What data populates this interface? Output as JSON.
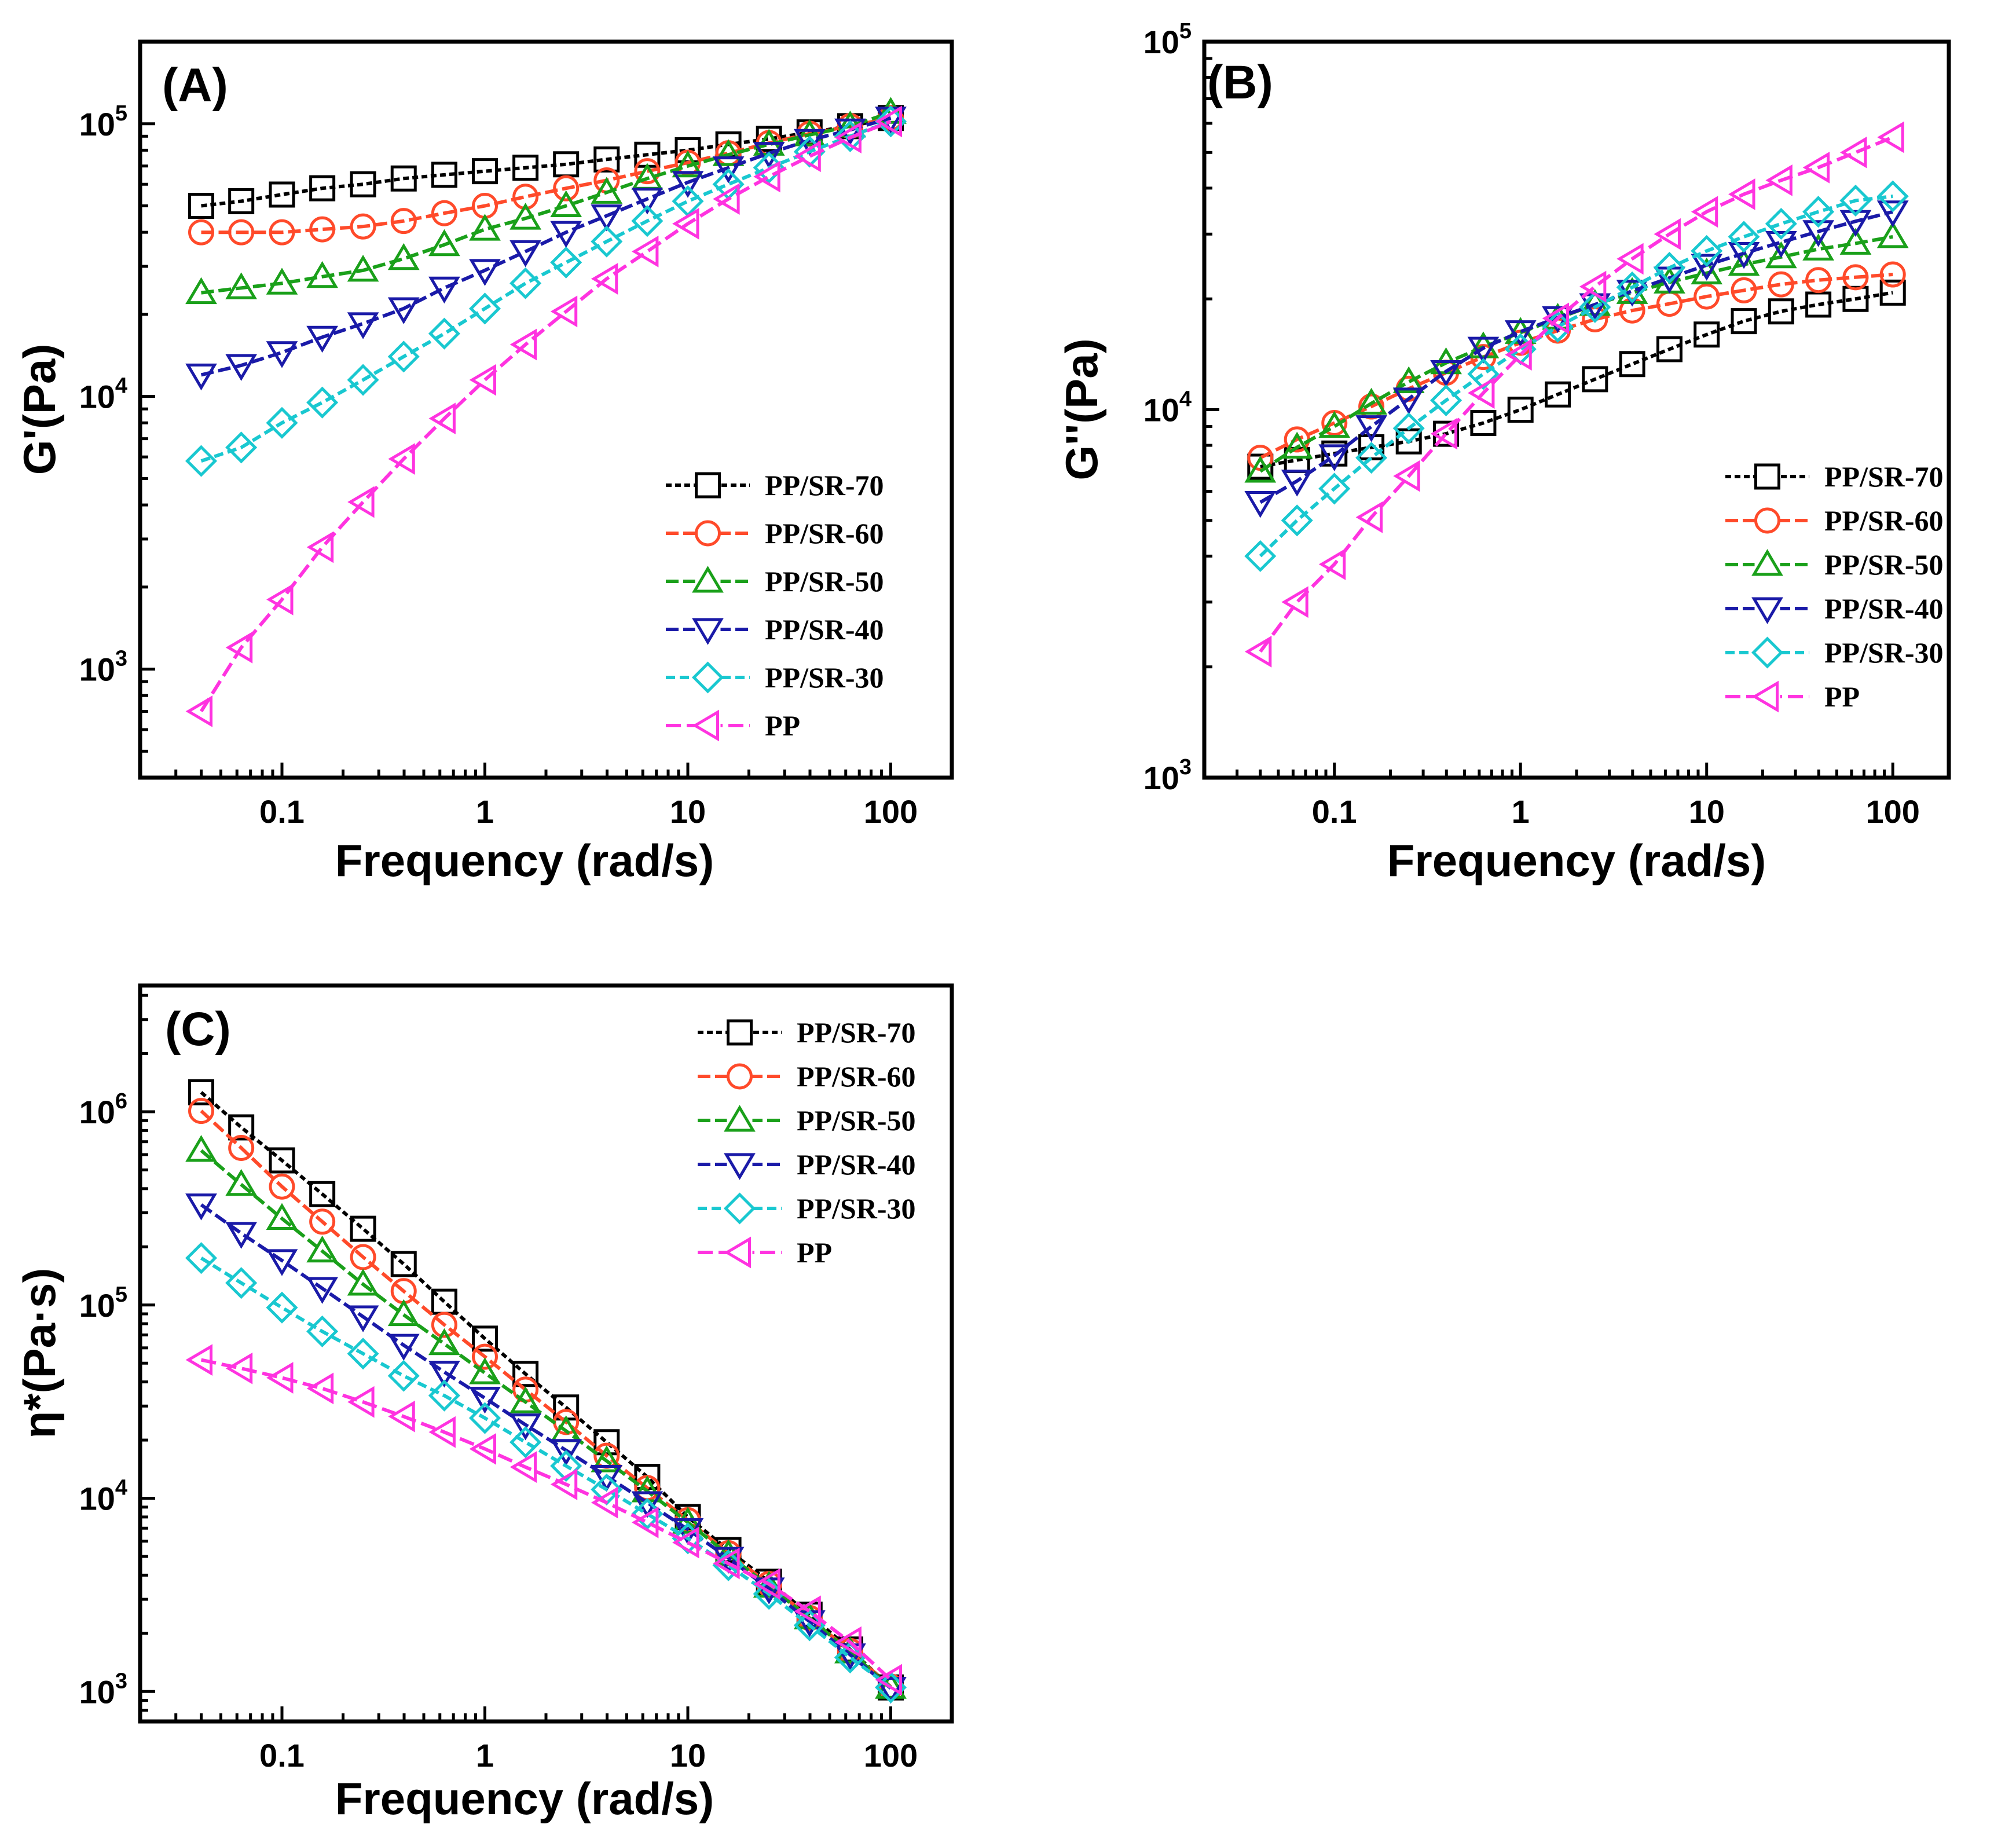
{
  "colors": {
    "PP/SR-70": "#000000",
    "PP/SR-60": "#ff4a2a",
    "PP/SR-50": "#1aa01a",
    "PP/SR-40": "#1a1aa8",
    "PP/SR-30": "#19c8d0",
    "PP": "#ff33e0"
  },
  "chart_data": [
    {
      "panel": "(A)",
      "type": "line",
      "xlabel": "Frequency (rad/s)",
      "ylabel": "G'(Pa)",
      "xscale": "log",
      "yscale": "log",
      "xlim": [
        0.02,
        200
      ],
      "ylim": [
        400,
        200000
      ],
      "xticks": [
        {
          "v": 0.1,
          "label": "0.1"
        },
        {
          "v": 1,
          "label": "1"
        },
        {
          "v": 10,
          "label": "10"
        },
        {
          "v": 100,
          "label": "100"
        }
      ],
      "yticks": [
        {
          "v": 1000,
          "base": "10",
          "exp": "3"
        },
        {
          "v": 10000,
          "base": "10",
          "exp": "4"
        },
        {
          "v": 100000,
          "base": "10",
          "exp": "5"
        }
      ],
      "legend": "bottom-right",
      "x": [
        0.04,
        0.063,
        0.1,
        0.158,
        0.251,
        0.398,
        0.631,
        1,
        1.585,
        2.512,
        3.981,
        6.31,
        10,
        15.85,
        25.12,
        39.81,
        63.1,
        100
      ],
      "series": [
        {
          "name": "PP/SR-70",
          "marker": "square",
          "values": [
            50000,
            52000,
            55000,
            58000,
            60000,
            63000,
            65000,
            67000,
            69000,
            71000,
            74000,
            77000,
            80000,
            84000,
            88000,
            93000,
            98000,
            105000
          ]
        },
        {
          "name": "PP/SR-60",
          "marker": "circle",
          "values": [
            40000,
            40000,
            40000,
            41000,
            42000,
            44000,
            47000,
            50000,
            54000,
            58000,
            62000,
            67000,
            72000,
            78000,
            85000,
            92000,
            98000,
            105000
          ]
        },
        {
          "name": "PP/SR-50",
          "marker": "triangle-up",
          "values": [
            24000,
            25000,
            26000,
            27500,
            29000,
            32000,
            36000,
            41000,
            45000,
            50000,
            56000,
            63000,
            70000,
            77000,
            84000,
            91000,
            98000,
            110000
          ]
        },
        {
          "name": "PP/SR-40",
          "marker": "triangle-down",
          "values": [
            12000,
            13000,
            14500,
            16500,
            18500,
            21000,
            25000,
            29000,
            34000,
            40000,
            46000,
            53000,
            61000,
            69000,
            78000,
            87000,
            95000,
            105000
          ]
        },
        {
          "name": "PP/SR-30",
          "marker": "diamond",
          "values": [
            5800,
            6500,
            8000,
            9500,
            11500,
            14000,
            17000,
            21000,
            26000,
            31000,
            37000,
            44000,
            52000,
            60000,
            69000,
            79000,
            90000,
            102000
          ]
        },
        {
          "name": "PP",
          "marker": "triangle-left",
          "values": [
            700,
            1200,
            1800,
            2800,
            4100,
            5900,
            8300,
            11500,
            15500,
            20500,
            27000,
            34000,
            43000,
            53000,
            64000,
            76000,
            89000,
            102000
          ]
        }
      ]
    },
    {
      "panel": "(B)",
      "type": "line",
      "xlabel": "Frequency (rad/s)",
      "ylabel": "G''(Pa)",
      "xscale": "log",
      "yscale": "log",
      "xlim": [
        0.02,
        200
      ],
      "ylim": [
        1000,
        100000
      ],
      "xticks": [
        {
          "v": 0.1,
          "label": "0.1"
        },
        {
          "v": 1,
          "label": "1"
        },
        {
          "v": 10,
          "label": "10"
        },
        {
          "v": 100,
          "label": "100"
        }
      ],
      "yticks": [
        {
          "v": 1000,
          "base": "10",
          "exp": "3"
        },
        {
          "v": 10000,
          "base": "10",
          "exp": "4"
        },
        {
          "v": 100000,
          "base": "10",
          "exp": "5"
        }
      ],
      "legend": "right",
      "x": [
        0.04,
        0.063,
        0.1,
        0.158,
        0.251,
        0.398,
        0.631,
        1,
        1.585,
        2.512,
        3.981,
        6.31,
        10,
        15.85,
        25.12,
        39.81,
        63.1,
        100
      ],
      "series": [
        {
          "name": "PP/SR-70",
          "marker": "square",
          "values": [
            7000,
            7300,
            7600,
            7900,
            8200,
            8600,
            9200,
            10000,
            11000,
            12100,
            13300,
            14600,
            16000,
            17400,
            18500,
            19300,
            20000,
            20800
          ]
        },
        {
          "name": "PP/SR-60",
          "marker": "circle",
          "values": [
            7400,
            8300,
            9200,
            10200,
            11400,
            12600,
            13900,
            15200,
            16400,
            17600,
            18600,
            19400,
            20300,
            21100,
            21900,
            22500,
            22900,
            23300
          ]
        },
        {
          "name": "PP/SR-50",
          "marker": "triangle-up",
          "values": [
            6800,
            7900,
            9000,
            10400,
            11900,
            13400,
            14800,
            16200,
            17700,
            19300,
            20800,
            22200,
            23500,
            24800,
            26000,
            27300,
            28300,
            29500
          ]
        },
        {
          "name": "PP/SR-40",
          "marker": "triangle-down",
          "values": [
            5600,
            6400,
            7500,
            9000,
            10700,
            12700,
            14700,
            16300,
            17800,
            19300,
            21000,
            22800,
            24700,
            26600,
            28500,
            30500,
            32500,
            34500
          ]
        },
        {
          "name": "PP/SR-30",
          "marker": "diamond",
          "values": [
            4000,
            5000,
            6100,
            7400,
            8900,
            10600,
            12500,
            14600,
            16800,
            19000,
            21500,
            24300,
            27000,
            29500,
            32000,
            34500,
            37000,
            38000
          ]
        },
        {
          "name": "PP",
          "marker": "triangle-left",
          "values": [
            2200,
            3000,
            3800,
            5100,
            6600,
            8600,
            11100,
            14100,
            17700,
            21600,
            25700,
            30000,
            34500,
            38500,
            42000,
            45500,
            50000,
            55000
          ]
        }
      ]
    },
    {
      "panel": "(C)",
      "type": "line",
      "xlabel": "Frequency (rad/s)",
      "ylabel": "η*(Pa·s)",
      "xscale": "log",
      "yscale": "log",
      "xlim": [
        0.02,
        200
      ],
      "ylim": [
        700,
        4500000
      ],
      "xticks": [
        {
          "v": 0.1,
          "label": "0.1"
        },
        {
          "v": 1,
          "label": "1"
        },
        {
          "v": 10,
          "label": "10"
        },
        {
          "v": 100,
          "label": "100"
        }
      ],
      "yticks": [
        {
          "v": 1000,
          "base": "10",
          "exp": "3"
        },
        {
          "v": 10000,
          "base": "10",
          "exp": "4"
        },
        {
          "v": 100000,
          "base": "10",
          "exp": "5"
        },
        {
          "v": 1000000,
          "base": "10",
          "exp": "6"
        }
      ],
      "legend": "top-right",
      "x": [
        0.04,
        0.063,
        0.1,
        0.158,
        0.251,
        0.398,
        0.631,
        1,
        1.585,
        2.512,
        3.981,
        6.31,
        10,
        15.85,
        25.12,
        39.81,
        63.1,
        100
      ],
      "series": [
        {
          "name": "PP/SR-70",
          "marker": "square",
          "values": [
            1260000,
            830000,
            560000,
            375000,
            248000,
            163000,
            104000,
            67000,
            44000,
            29500,
            19500,
            12900,
            8000,
            5400,
            3700,
            2500,
            1650,
            1050
          ]
        },
        {
          "name": "PP/SR-60",
          "marker": "circle",
          "values": [
            1010000,
            650000,
            410000,
            270000,
            177000,
            118000,
            79000,
            54000,
            36500,
            24800,
            16600,
            11300,
            7700,
            5200,
            3600,
            2400,
            1620,
            1060
          ]
        },
        {
          "name": "PP/SR-50",
          "marker": "triangle-up",
          "values": [
            630000,
            420000,
            280000,
            190000,
            128000,
            89000,
            63000,
            44500,
            31500,
            22300,
            15600,
            10900,
            7500,
            5100,
            3500,
            2400,
            1600,
            1050
          ]
        },
        {
          "name": "PP/SR-40",
          "marker": "triangle-down",
          "values": [
            330000,
            235000,
            170000,
            122000,
            87000,
            62000,
            45000,
            33000,
            24000,
            17700,
            13000,
            9500,
            6900,
            4900,
            3400,
            2300,
            1550,
            1040
          ]
        },
        {
          "name": "PP/SR-30",
          "marker": "diamond",
          "values": [
            175000,
            130000,
            97000,
            73000,
            56000,
            43000,
            34000,
            26000,
            19500,
            14700,
            11100,
            8300,
            6200,
            4500,
            3200,
            2200,
            1500,
            1050
          ]
        },
        {
          "name": "PP",
          "marker": "triangle-left",
          "values": [
            52000,
            47000,
            42000,
            37000,
            31500,
            26500,
            22000,
            18000,
            14500,
            11800,
            9500,
            7500,
            5900,
            4600,
            3600,
            2600,
            1800,
            1150
          ]
        }
      ]
    }
  ]
}
